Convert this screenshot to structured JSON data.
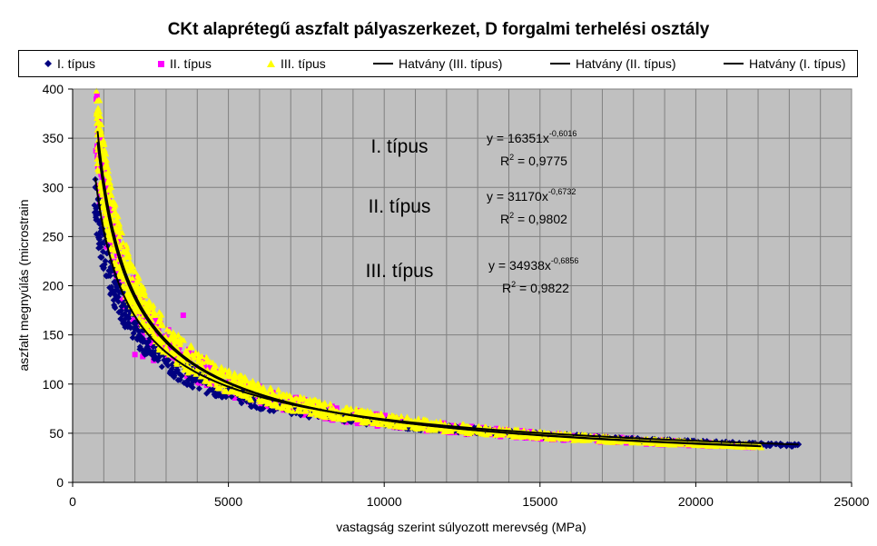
{
  "chart_data": {
    "type": "scatter",
    "title": "CKt alaprétegű aszfalt pályaszerkezet, D forgalmi terhelési osztály",
    "xlabel": "vastagság szerint súlyozott merevség (MPa)",
    "ylabel": "aszfalt megnyúlás (microstrain",
    "xlim": [
      0,
      25000
    ],
    "ylim": [
      0,
      400
    ],
    "xticks": [
      0,
      5000,
      10000,
      15000,
      20000,
      25000
    ],
    "yticks": [
      0,
      50,
      100,
      150,
      200,
      250,
      300,
      350,
      400
    ],
    "grid": true,
    "plot_background": "#c0c0c0",
    "legend_position": "top",
    "series": [
      {
        "name": "I. típus",
        "kind": "scatter",
        "marker": "diamond",
        "color": "#000080",
        "x_range": [
          700,
          23300
        ],
        "trend_coeff": 16351,
        "trend_exp": -0.6016,
        "spread": [
          -0.17,
          0.02
        ],
        "outliers": []
      },
      {
        "name": "II. típus",
        "kind": "scatter",
        "marker": "square",
        "color": "#ff00ff",
        "x_range": [
          750,
          22000
        ],
        "trend_coeff": 31170,
        "trend_exp": -0.6732,
        "spread": [
          -0.15,
          0.12
        ],
        "outliers": [
          {
            "x": 3550,
            "y": 170
          },
          {
            "x": 2000,
            "y": 130
          },
          {
            "x": 2250,
            "y": 128
          },
          {
            "x": 2600,
            "y": 124
          }
        ]
      },
      {
        "name": "III. típus",
        "kind": "scatter",
        "marker": "triangle",
        "color": "#ffff00",
        "x_range": [
          760,
          22100
        ],
        "trend_coeff": 34938,
        "trend_exp": -0.6856,
        "spread": [
          -0.12,
          0.15
        ],
        "outliers": []
      },
      {
        "name": "Hatvány (III. típus)",
        "kind": "trendline",
        "coeff": 34938,
        "exp": -0.6856,
        "x_range": [
          800,
          22100
        ],
        "color": "#000000"
      },
      {
        "name": "Hatvány (II. típus)",
        "kind": "trendline",
        "coeff": 31170,
        "exp": -0.6732,
        "x_range": [
          800,
          22000
        ],
        "color": "#000000"
      },
      {
        "name": "Hatvány (I. típus)",
        "kind": "trendline",
        "coeff": 16351,
        "exp": -0.6016,
        "x_range": [
          730,
          23300
        ],
        "color": "#000000"
      }
    ],
    "annotations": {
      "labels": [
        "I. típus",
        "II. típus",
        "III. típus"
      ],
      "equations": [
        {
          "base": "y = 16351x",
          "exp": "-0,6016",
          "r2_prefix": "R",
          "r2_sup": "2",
          "r2_value": " = 0,9775"
        },
        {
          "base": "y = 31170x",
          "exp": "-0,6732",
          "r2_prefix": "R",
          "r2_sup": "2",
          "r2_value": " = 0,9802"
        },
        {
          "base": "y = 34938x",
          "exp": "-0,6856",
          "r2_prefix": "R",
          "r2_sup": "2",
          "r2_value": " = 0,9822"
        }
      ]
    }
  }
}
